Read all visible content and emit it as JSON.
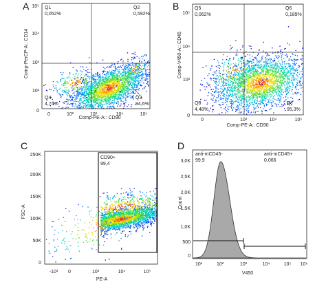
{
  "chart_data": [
    {
      "type": "scatter",
      "panel": "A",
      "xlabel": "Comp-PE-A:: CD90",
      "ylabel": "Comp-PerCP-A:: CD14",
      "x_ticks": [
        "0",
        "10²",
        "10³",
        "10⁴",
        "10⁵"
      ],
      "y_ticks": [
        "0",
        "10²",
        "10³",
        "10⁴",
        "10⁵"
      ],
      "x_scale": "biexponential",
      "y_scale": "biexponential",
      "quadrants": [
        {
          "name": "Q1",
          "value": "0,052%"
        },
        {
          "name": "Q2",
          "value": "0,592%"
        },
        {
          "name": "Q3",
          "value": "94,6%"
        },
        {
          "name": "Q4",
          "value": "4,74%"
        }
      ],
      "gate_x": 900,
      "gate_y": 1000,
      "population_center": {
        "x": 5000,
        "y": 200
      },
      "colormap": "density (blue→green→yellow→red)"
    },
    {
      "type": "scatter",
      "panel": "B",
      "xlabel": "Comp-PE-A:: CD90",
      "ylabel": "Comp-V450-A:: CD45",
      "x_ticks": [
        "0",
        "10³",
        "10⁴",
        "10⁵"
      ],
      "y_ticks": [
        "0",
        "10³",
        "10⁴",
        "10⁵"
      ],
      "x_scale": "biexponential",
      "y_scale": "biexponential",
      "quadrants": [
        {
          "name": "Q5",
          "value": "0,062%"
        },
        {
          "name": "Q6",
          "value": "0,189%"
        },
        {
          "name": "Q7",
          "value": "95,3%"
        },
        {
          "name": "Q8",
          "value": "4,48%"
        }
      ],
      "gate_x": 900,
      "gate_y": 2500,
      "population_center": {
        "x": 6000,
        "y": 200
      },
      "colormap": "density (blue→green→yellow→red)"
    },
    {
      "type": "scatter",
      "panel": "C",
      "xlabel": "PE-A",
      "ylabel": "FSC-A",
      "x_ticks": [
        "-10³",
        "0",
        "10³",
        "10⁴",
        "10⁵"
      ],
      "y_ticks": [
        "0",
        "50K",
        "100K",
        "150K",
        "200K",
        "250K"
      ],
      "x_scale": "biexponential",
      "ylim": [
        0,
        260000
      ],
      "gate": {
        "name": "CD90+",
        "value": "99,4",
        "x_from": 1300,
        "x_to": 150000,
        "y_from": 12000,
        "y_to": 245000
      },
      "population_center": {
        "x": 8000,
        "y": 90000
      },
      "colormap": "density (blue→green→yellow→red)"
    },
    {
      "type": "area",
      "panel": "D",
      "xlabel": "V450",
      "ylabel": "Count",
      "x_ticks": [
        "10¹",
        "10²",
        "10³",
        "10⁴",
        "10⁵",
        "10⁶"
      ],
      "y_ticks": [
        "0",
        "500",
        "1,0K",
        "1,5K",
        "2,0K",
        "2,5K",
        "3,0K"
      ],
      "x_scale": "log",
      "xlim": [
        5,
        2000000
      ],
      "ylim": [
        0,
        3300
      ],
      "peak": {
        "x": 90,
        "count": 3100
      },
      "gates": [
        {
          "name": "anti-mCD45-",
          "value": "99,9",
          "x_from": 5,
          "x_to": 1000,
          "level": 520
        },
        {
          "name": "anti-mCD45+",
          "value": "0,066",
          "x_from": 1000,
          "x_to": 1500000,
          "level": 280
        }
      ]
    }
  ]
}
